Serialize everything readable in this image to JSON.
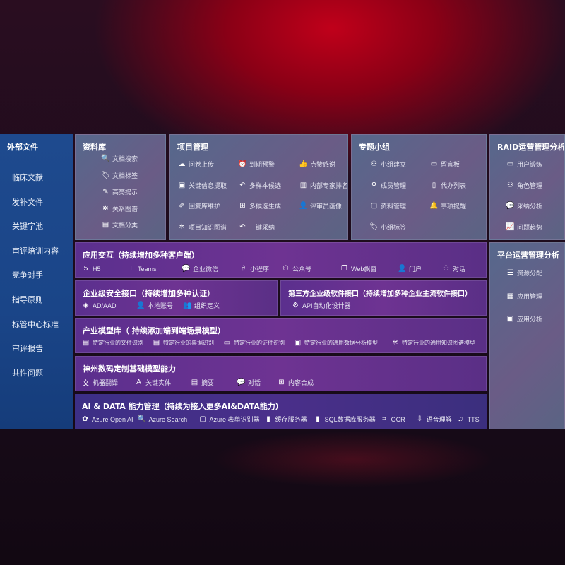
{
  "sidebar": {
    "title": "外部文件",
    "items": [
      "临床文献",
      "发补文件",
      "关键字池",
      "审评培训内容",
      "竞争对手",
      "指导原则",
      "标管中心标准",
      "审评报告",
      "共性问题"
    ]
  },
  "panels": [
    {
      "id": "library",
      "title": "资料库",
      "items": [
        [
          "文档搜索",
          "doc-search-icon"
        ],
        [
          "文档标签",
          "tag-icon"
        ],
        [
          "高亮提示",
          "pen-icon"
        ],
        [
          "关系图谱",
          "graph-icon"
        ],
        [
          "文档分类",
          "doc-category-icon"
        ]
      ]
    },
    {
      "id": "project",
      "title": "项目管理",
      "items": [
        [
          "问卷上传",
          "cloud-upload-icon"
        ],
        [
          "到期预警",
          "alarm-icon"
        ],
        [
          "点赞感谢",
          "thumbs-up-icon"
        ],
        [
          "关键信息提取",
          "extract-icon"
        ],
        [
          "多样本候选",
          "reply-icon"
        ],
        [
          "内部专家排名",
          "ranking-icon"
        ],
        [
          "回复库维护",
          "edit-icon"
        ],
        [
          "多候选生成",
          "puzzle-icon"
        ],
        [
          "评审员画像",
          "user-icon"
        ],
        [
          "项目知识图谱",
          "graph-icon"
        ],
        [
          "一键采纳",
          "reply-icon"
        ]
      ]
    },
    {
      "id": "group",
      "title": "专题小组",
      "items": [
        [
          "小组建立",
          "group-icon"
        ],
        [
          "留言板",
          "bbs-icon"
        ],
        [
          "成员管理",
          "user-add-icon"
        ],
        [
          "代办列表",
          "clipboard-icon"
        ],
        [
          "资料管理",
          "folder-icon"
        ],
        [
          "事项提醒",
          "bell-icon"
        ],
        [
          "小组标签",
          "tag-icon"
        ]
      ]
    },
    {
      "id": "raid",
      "title": "RAID运营管理分析",
      "items": [
        [
          "用户锻炼",
          "id-card-icon"
        ],
        [
          "角色管理",
          "users-icon"
        ],
        [
          "采纳分析",
          "qa-icon"
        ],
        [
          "问题趋势",
          "trend-icon"
        ]
      ]
    },
    {
      "id": "platform",
      "title": "平台运营管理分析",
      "items": [
        [
          "资源分配",
          "list-icon"
        ],
        [
          "应用管理",
          "apps-icon"
        ],
        [
          "应用分析",
          "analysis-icon"
        ]
      ]
    },
    {
      "id": "app",
      "title": "应用交互（持续增加多种客户端）",
      "items": [
        [
          "H5",
          "html5-icon"
        ],
        [
          "Teams",
          "teams-icon"
        ],
        [
          "企业微信",
          "wechat-work-icon"
        ],
        [
          "小程序",
          "miniprogram-icon"
        ],
        [
          "公众号",
          "official-account-icon"
        ],
        [
          "Web飘窗",
          "window-icon"
        ],
        [
          "门户",
          "portal-icon"
        ],
        [
          "对话",
          "chat-users-icon"
        ]
      ]
    },
    {
      "id": "security",
      "title": "企业级安全接口（持续增加多种认证）",
      "items": [
        [
          "AD/AAD",
          "ad-icon"
        ],
        [
          "本地账号",
          "account-icon"
        ],
        [
          "组织定义",
          "org-icon"
        ]
      ]
    },
    {
      "id": "thirdparty",
      "title": "第三方企业级软件接口（持续增加多种企业主流软件接口）",
      "items": [
        [
          "API自动化设计器",
          "api-gear-icon"
        ]
      ]
    },
    {
      "id": "industry",
      "title": "产业模型库（ 持续添加端到端场景模型）",
      "items": [
        [
          "特定行业的文件识别",
          "file-icon"
        ],
        [
          "特定行业的票据识别",
          "receipt-icon"
        ],
        [
          "特定行业的证件识别",
          "id-card-icon"
        ],
        [
          "特定行业的通用数据分析模型",
          "chart-icon"
        ],
        [
          "特定行业的通用知识图谱模型",
          "graph-icon"
        ]
      ]
    },
    {
      "id": "base",
      "title": "神州数码定制基础模型能力",
      "items": [
        [
          "机器翻译",
          "translate-icon"
        ],
        [
          "关键实体",
          "entity-icon"
        ],
        [
          "摘要",
          "summary-icon"
        ],
        [
          "对话",
          "chat-icon"
        ],
        [
          "内容合成",
          "synthesis-icon"
        ]
      ]
    },
    {
      "id": "aidata",
      "title": "AI & DATA 能力管理（持续为接入更多AI&DATA能力）",
      "items": [
        [
          "Azure Open AI",
          "openai-icon"
        ],
        [
          "Azure Search",
          "search-icon"
        ],
        [
          "Azure 表单识别器",
          "form-icon"
        ],
        [
          "缓存服务器",
          "cache-icon"
        ],
        [
          "SQL数据库服务器",
          "sql-icon"
        ],
        [
          "OCR",
          "ocr-icon"
        ],
        [
          "语音理解",
          "speech-icon"
        ],
        [
          "TTS",
          "tts-icon"
        ]
      ]
    }
  ]
}
